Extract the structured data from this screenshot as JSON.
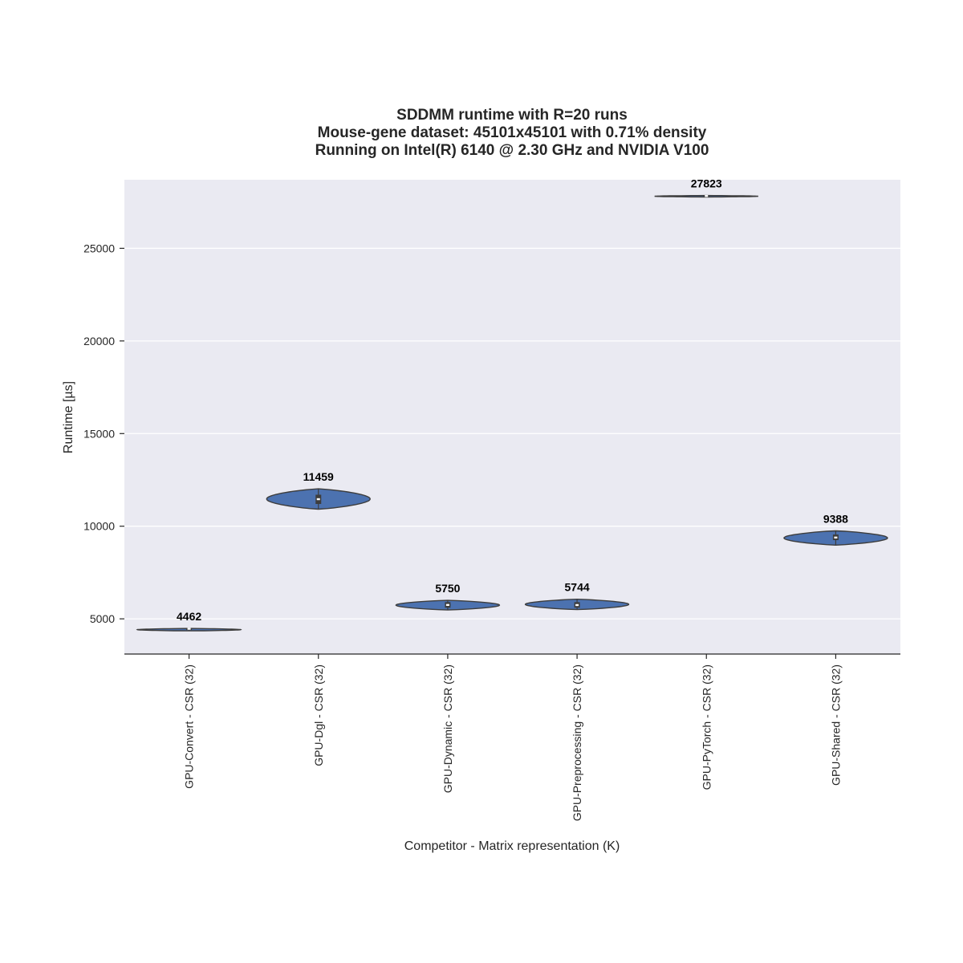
{
  "chart_data": {
    "type": "violin",
    "title_lines": [
      "SDDMM runtime with R=20 runs",
      "Mouse-gene dataset: 45101x45101 with 0.71% density",
      "Running on Intel(R) 6140 @ 2.30 GHz and NVIDIA V100"
    ],
    "xlabel": "Competitor - Matrix representation (K)",
    "ylabel": "Runtime [µs]",
    "ylim": [
      3100,
      28700
    ],
    "yticks": [
      5000,
      10000,
      15000,
      20000,
      25000
    ],
    "grid": true,
    "categories": [
      "GPU-Convert - CSR (32)",
      "GPU-Dgl - CSR (32)",
      "GPU-Dynamic - CSR (32)",
      "GPU-Preprocessing - CSR (32)",
      "GPU-PyTorch - CSR (32)",
      "GPU-Shared - CSR (32)"
    ],
    "series": [
      {
        "values": [
          4462,
          11459,
          5750,
          5744,
          27823,
          9388
        ],
        "labels": [
          "4462",
          "11459",
          "5750",
          "5744",
          "27823",
          "9388"
        ],
        "ranges": [
          [
            4350,
            4480
          ],
          [
            10920,
            12020
          ],
          [
            5480,
            6000
          ],
          [
            5500,
            6060
          ],
          [
            27770,
            27850
          ],
          [
            8980,
            9750
          ]
        ],
        "quartiles": [
          [
            4420,
            4480
          ],
          [
            11200,
            11700
          ],
          [
            5600,
            5900
          ],
          [
            5600,
            5900
          ],
          [
            27790,
            27840
          ],
          [
            9250,
            9550
          ]
        ]
      }
    ],
    "colors": {
      "violin_fill": "#4c72b0",
      "violin_edge": "#3d3d3d",
      "plot_bg": "#eaeaf2",
      "grid": "#ffffff",
      "box": "#3d3d3d",
      "median": "#ffffff"
    }
  }
}
